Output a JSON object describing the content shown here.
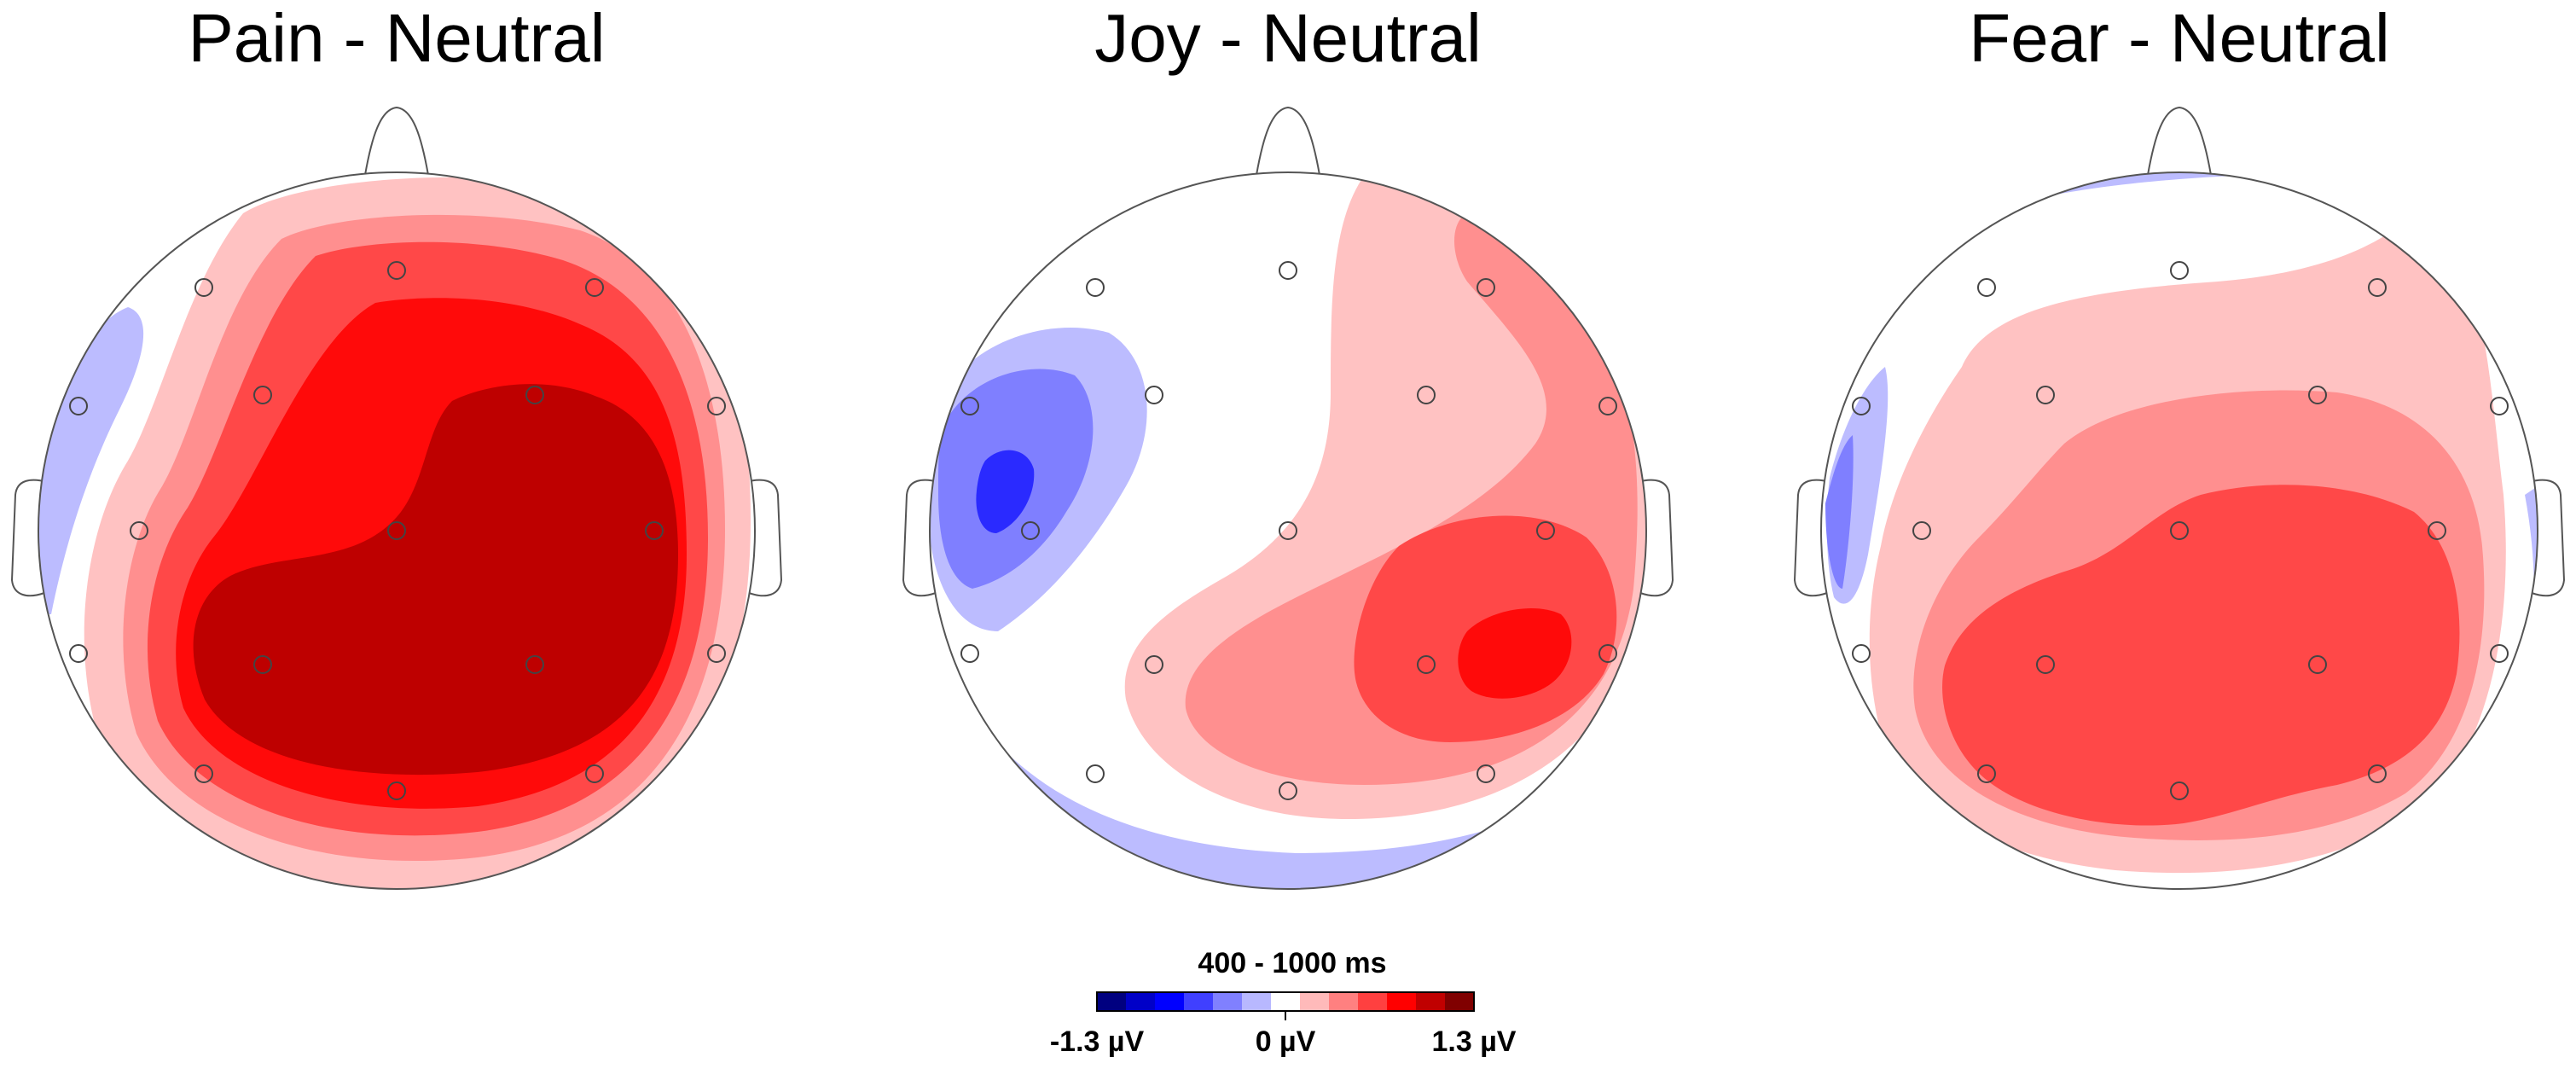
{
  "maps": [
    {
      "title": "Pain - Neutral"
    },
    {
      "title": "Joy - Neutral"
    },
    {
      "title": "Fear - Neutral"
    }
  ],
  "colorbar": {
    "title": "400 - 1000 ms",
    "min_label": "-1.3 µV",
    "zero_label": "0 µV",
    "max_label": "1.3 µV",
    "colors": [
      "#000080",
      "#0000c8",
      "#0000ff",
      "#4040ff",
      "#8080ff",
      "#b8b8ff",
      "#ffffff",
      "#ffbaba",
      "#ff8080",
      "#ff4040",
      "#ff0000",
      "#c00000",
      "#800000"
    ]
  },
  "colors": {
    "pos1": "#ffc2c2",
    "pos2": "#ff8f8f",
    "pos3": "#ff4848",
    "pos4": "#ff0a0a",
    "pos5": "#be0000",
    "neg1": "#bcbcff",
    "neg2": "#7f7fff",
    "neg3": "#2a2aff"
  }
}
